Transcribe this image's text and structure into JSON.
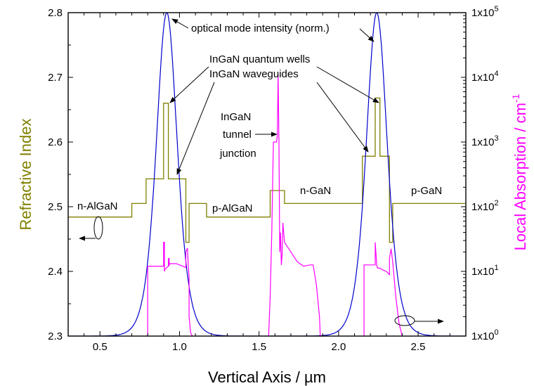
{
  "chart_data": {
    "type": "line",
    "xlabel": "Vertical Axis / µm",
    "ylabel_left": "Refractive Index",
    "ylabel_right": "Local Absorption / cm",
    "ylabel_right_exp": "-1",
    "xlim": [
      0.3,
      2.8
    ],
    "ylim_left": [
      2.3,
      2.8
    ],
    "ylim_right_log10": [
      0,
      5
    ],
    "x_ticks": [
      "0.5",
      "1.0",
      "1.5",
      "2.0",
      "2.5"
    ],
    "x_tick_values": [
      0.5,
      1.0,
      1.5,
      2.0,
      2.5
    ],
    "y_left_ticks": [
      "2.3",
      "2.4",
      "2.5",
      "2.6",
      "2.7",
      "2.8"
    ],
    "y_left_tick_values": [
      2.3,
      2.4,
      2.5,
      2.6,
      2.7,
      2.8
    ],
    "y_right_ticks": [
      {
        "base": "1x10",
        "exp": "0"
      },
      {
        "base": "1x10",
        "exp": "1"
      },
      {
        "base": "1x10",
        "exp": "2"
      },
      {
        "base": "1x10",
        "exp": "3"
      },
      {
        "base": "1x10",
        "exp": "4"
      },
      {
        "base": "1x10",
        "exp": "5"
      }
    ],
    "colors": {
      "refractive_index": "#808000",
      "mode_intensity": "#0000cc",
      "absorption": "#ff00ff"
    },
    "annotations": {
      "mode": "optical mode intensity (norm.)",
      "qw": "InGaN quantum wells",
      "wg": "InGaN waveguides",
      "tj1": "InGaN",
      "tj2": "tunnel",
      "tj3": "junction",
      "l1": "n-AlGaN",
      "l2": "p-AlGaN",
      "l3": "n-GaN",
      "l4": "p-GaN"
    },
    "series": [
      {
        "key": "refractive_index",
        "axis": "left",
        "x": [
          0.3,
          0.7,
          0.7,
          0.79,
          0.79,
          0.9,
          0.9,
          0.93,
          0.93,
          1.04,
          1.04,
          1.06,
          1.06,
          1.17,
          1.17,
          1.57,
          1.57,
          1.66,
          1.66,
          2.15,
          2.15,
          2.23,
          2.23,
          2.26,
          2.26,
          2.32,
          2.32,
          2.34,
          2.34,
          2.8
        ],
        "y": [
          2.484,
          2.484,
          2.505,
          2.505,
          2.543,
          2.543,
          2.66,
          2.66,
          2.543,
          2.543,
          2.445,
          2.445,
          2.505,
          2.505,
          2.484,
          2.484,
          2.525,
          2.525,
          2.505,
          2.505,
          2.578,
          2.578,
          2.668,
          2.668,
          2.578,
          2.578,
          2.445,
          2.445,
          2.505,
          2.505
        ]
      },
      {
        "key": "mode_intensity",
        "axis": "left",
        "peaks": [
          {
            "center": 0.92,
            "peak": 2.8,
            "base": 2.3,
            "decay": 0.088
          },
          {
            "center": 2.24,
            "peak": 2.8,
            "base": 2.3,
            "decay": 0.088
          }
        ]
      },
      {
        "key": "absorption",
        "axis": "right_log10",
        "segments": [
          {
            "x": [
              0.79,
              0.8,
              0.8,
              0.83,
              0.84,
              0.85,
              0.86,
              0.87,
              0.88,
              0.89,
              0.9,
              0.9,
              0.905,
              0.905,
              0.91,
              0.92,
              0.925,
              0.93,
              0.93,
              0.935,
              0.935,
              0.94,
              0.96,
              0.98,
              1.0,
              1.02,
              1.04,
              1.04,
              1.05,
              1.055,
              1.06,
              1.06,
              1.07,
              1.08
            ],
            "y": [
              0,
              0,
              1.08,
              1.08,
              1.08,
              1.08,
              1.08,
              1.08,
              1.08,
              1.08,
              1.08,
              1.45,
              1.45,
              1.0,
              1.04,
              1.06,
              1.07,
              1.08,
              1.2,
              1.2,
              1.1,
              1.12,
              1.12,
              1.12,
              1.1,
              1.08,
              1.06,
              1.3,
              1.36,
              1.1,
              0.9,
              0.3,
              0.05,
              0.0
            ]
          },
          {
            "x": [
              1.56,
              1.57,
              1.58,
              1.59,
              1.6,
              1.61,
              1.615,
              1.62,
              1.625,
              1.63,
              1.635,
              1.64,
              1.645,
              1.65,
              1.66,
              1.7,
              1.74,
              1.78,
              1.82,
              1.84,
              1.86,
              1.88,
              1.885
            ],
            "y": [
              0.0,
              0.6,
              1.6,
              3.0,
              3.0,
              3.0,
              3.1,
              4.05,
              3.0,
              1.3,
              1.6,
              1.1,
              1.25,
              1.75,
              1.45,
              1.3,
              1.15,
              1.08,
              1.1,
              1.1,
              0.8,
              0.3,
              0.0
            ]
          },
          {
            "x": [
              2.16,
              2.16,
              2.23,
              2.23,
              2.24,
              2.245,
              2.26,
              2.28,
              2.3,
              2.32,
              2.32,
              2.33,
              2.34,
              2.36,
              2.38,
              2.4
            ],
            "y": [
              0.0,
              1.1,
              1.1,
              1.45,
              1.1,
              1.05,
              1.05,
              1.02,
              1.0,
              0.95,
              1.2,
              1.35,
              1.15,
              0.6,
              0.2,
              0.0
            ]
          }
        ]
      }
    ],
    "grid": false,
    "legend": "none"
  }
}
